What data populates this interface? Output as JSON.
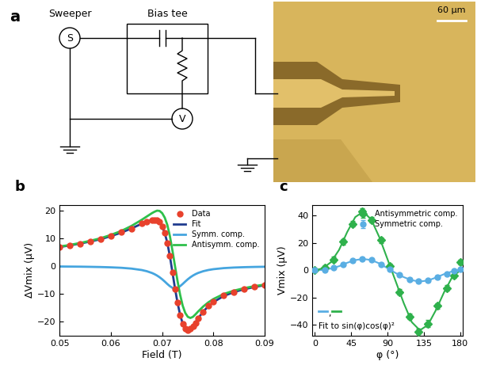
{
  "diagram": {
    "panel_label": "a",
    "sweeper_label": "Sweeper",
    "bias_tee_label": "Bias tee",
    "source_symbol": "S",
    "meter_symbol": "V",
    "scale_bar_label": "60 μm"
  },
  "chart_data": [
    {
      "panel_label": "b",
      "type": "line",
      "x_label": "Field (T)",
      "y_label": "ΔVmix (μV)",
      "x": [
        0.05,
        0.052,
        0.054,
        0.056,
        0.058,
        0.06,
        0.062,
        0.064,
        0.066,
        0.067,
        0.068,
        0.0685,
        0.069,
        0.0695,
        0.07,
        0.0705,
        0.071,
        0.0715,
        0.072,
        0.0725,
        0.073,
        0.0735,
        0.074,
        0.0745,
        0.075,
        0.0755,
        0.076,
        0.0765,
        0.077,
        0.078,
        0.079,
        0.08,
        0.082,
        0.084,
        0.086,
        0.088,
        0.09
      ],
      "series": [
        {
          "name": "Data",
          "type": "scatter",
          "color": "#e8412c",
          "marker": "circle",
          "values": [
            6.9,
            7.5,
            8.0,
            8.9,
            9.6,
            10.8,
            12.1,
            13.4,
            15.3,
            15.9,
            16.6,
            16.5,
            16.4,
            15.9,
            14.2,
            11.9,
            8.3,
            3.7,
            -2.3,
            -8.1,
            -13.0,
            -17.6,
            -20.8,
            -22.5,
            -23.1,
            -22.4,
            -21.5,
            -20.3,
            -18.6,
            -16.4,
            -14.3,
            -12.9,
            -10.6,
            -9.4,
            -8.2,
            -7.5,
            -6.8
          ]
        },
        {
          "name": "Fit",
          "type": "line",
          "color": "#1f3b8f",
          "line_style": "solid",
          "values": [
            6.86,
            7.43,
            8.1,
            8.84,
            9.67,
            10.76,
            12.0,
            13.51,
            15.2,
            15.97,
            16.54,
            16.62,
            16.51,
            15.8,
            14.28,
            11.86,
            8.4,
            3.6,
            -2.18,
            -8.0,
            -13.18,
            -17.5,
            -20.6,
            -22.34,
            -22.92,
            -22.6,
            -21.59,
            -20.18,
            -18.76,
            -16.33,
            -14.4,
            -12.9,
            -10.72,
            -9.31,
            -8.28,
            -7.49,
            -6.83
          ]
        },
        {
          "name": "Symm. comp.",
          "type": "line",
          "color": "#45a5df",
          "line_style": "solid",
          "values": [
            -0.14,
            -0.17,
            -0.2,
            -0.26,
            -0.33,
            -0.44,
            -0.6,
            -0.89,
            -1.4,
            -1.83,
            -2.46,
            -2.88,
            -3.39,
            -4.0,
            -4.72,
            -5.54,
            -6.4,
            -7.2,
            -7.78,
            -8.0,
            -7.78,
            -7.2,
            -6.4,
            -5.54,
            -4.72,
            -4.0,
            -3.39,
            -2.88,
            -2.46,
            -1.83,
            -1.4,
            -1.1,
            -0.72,
            -0.51,
            -0.38,
            -0.29,
            -0.23
          ]
        },
        {
          "name": "Antisymm. comp.",
          "type": "line",
          "color": "#2ec04a",
          "line_style": "solid",
          "values": [
            7.0,
            7.6,
            8.3,
            9.1,
            10.0,
            11.2,
            12.6,
            14.4,
            16.6,
            17.8,
            19.0,
            19.5,
            19.9,
            19.8,
            19.0,
            17.4,
            14.8,
            10.8,
            5.6,
            0.0,
            -5.4,
            -10.3,
            -14.2,
            -16.8,
            -18.2,
            -18.6,
            -18.2,
            -17.3,
            -16.3,
            -14.5,
            -13.0,
            -11.8,
            -10.0,
            -8.8,
            -7.9,
            -7.2,
            -6.6
          ]
        }
      ],
      "xlim": [
        0.05,
        0.09
      ],
      "xticks": [
        0.05,
        0.06,
        0.07,
        0.08,
        0.09
      ],
      "ylim": [
        -25,
        22
      ],
      "yticks": [
        {
          "value": -20,
          "label": "−20"
        },
        {
          "value": -10,
          "label": "−10"
        },
        0,
        10,
        20
      ],
      "legend": "upper right"
    },
    {
      "panel_label": "c",
      "type": "scatter",
      "x_label": "φ (°)",
      "y_label": "Vmix (μV)",
      "x": [
        0,
        12,
        23,
        35,
        47,
        58,
        70,
        82,
        93,
        105,
        117,
        128,
        140,
        152,
        163,
        172,
        180
      ],
      "series": [
        {
          "name": "Antisymmetric comp.",
          "color": "#2fb14c",
          "marker": "diamond",
          "values": [
            0,
            2,
            8,
            21,
            34,
            43,
            37,
            22,
            3,
            -16,
            -34,
            -45,
            -39,
            -26,
            -13,
            -4,
            6
          ],
          "error": [
            1,
            1.5,
            2,
            2,
            2,
            2.5,
            2,
            2,
            2,
            2,
            2,
            2,
            2.5,
            2,
            2,
            1.5,
            1.5
          ]
        },
        {
          "name": "Symmetric comp.",
          "color": "#5aaee3",
          "marker": "circle",
          "values": [
            0,
            0.3,
            2,
            4.5,
            7,
            8.5,
            7.5,
            4.5,
            0.5,
            -3.5,
            -6.5,
            -8,
            -7.5,
            -5,
            -2.5,
            -0.5,
            1
          ],
          "error": [
            0.5,
            0.5,
            0.8,
            0.8,
            1,
            1,
            1,
            1,
            1,
            1,
            1,
            1,
            1,
            1,
            0.8,
            0.8,
            0.5
          ]
        }
      ],
      "fit_x": [
        0,
        10,
        20,
        30,
        40,
        50,
        60,
        70,
        80,
        90,
        100,
        110,
        120,
        130,
        140,
        150,
        160,
        170,
        180
      ],
      "fits": [
        {
          "color": "#5aaee3",
          "values": [
            0,
            0.3,
            1.3,
            3,
            5.5,
            7.5,
            8.3,
            7.5,
            5,
            1.5,
            -2,
            -5,
            -7.3,
            -8.2,
            -7.5,
            -5.3,
            -2.8,
            -0.8,
            0.5
          ]
        },
        {
          "color": "#2fb14c",
          "values": [
            0,
            1.5,
            6,
            15,
            28,
            39,
            43,
            37,
            24,
            8,
            -8,
            -24,
            -38,
            -44,
            -40,
            -29,
            -16,
            -5,
            0
          ]
        }
      ],
      "fit_separator": ",",
      "fit_label": "Fit to sin(φ)cos(φ)²",
      "xlim": [
        -3,
        183
      ],
      "xticks": [
        0,
        45,
        90,
        135,
        180
      ],
      "ylim": [
        -48,
        48
      ],
      "yticks": [
        {
          "value": -40,
          "label": "−40"
        },
        {
          "value": -20,
          "label": "−20"
        },
        0,
        20,
        40
      ],
      "legend": "upper right"
    }
  ]
}
